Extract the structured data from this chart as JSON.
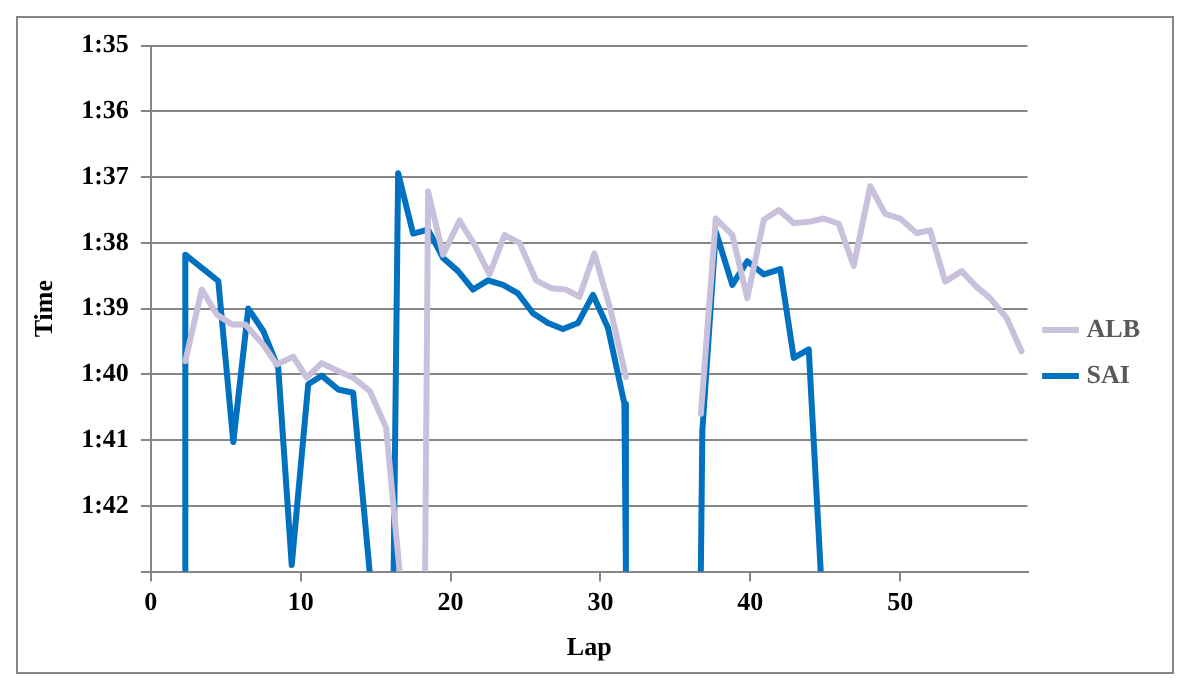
{
  "chart_data": {
    "type": "line",
    "xlabel": "Lap",
    "ylabel": "Time",
    "xlim": [
      0,
      58.5
    ],
    "xticks": [
      0,
      10,
      20,
      30,
      40,
      50
    ],
    "ylim": [
      103,
      95
    ],
    "yticks": [
      {
        "value": 95,
        "label": "1:35"
      },
      {
        "value": 96,
        "label": "1:36"
      },
      {
        "value": 97,
        "label": "1:37"
      },
      {
        "value": 98,
        "label": "1:38"
      },
      {
        "value": 99,
        "label": "1:39"
      },
      {
        "value": 100,
        "label": "1:40"
      },
      {
        "value": 101,
        "label": "1:41"
      },
      {
        "value": 102,
        "label": "1:42"
      },
      {
        "value": 103,
        "label": null
      }
    ],
    "grid": "y",
    "legend": "right",
    "marker": "none",
    "line_style": "solid",
    "series": [
      {
        "name": "ALB",
        "color": "#c9c0dc",
        "x": [
          2.3,
          3.4,
          4.4,
          5.4,
          6.3,
          7.5,
          8.4,
          9.5,
          10.4,
          11.4,
          12.5,
          13.5,
          14.6,
          15.7,
          16.6,
          17.5,
          18.3,
          18.5,
          19.5,
          20.6,
          21.6,
          22.6,
          23.6,
          24.6,
          25.7,
          26.7,
          27.7,
          28.6,
          29.6,
          30.7,
          31.7,
          34,
          36.7,
          37.7,
          38.8,
          39.8,
          40.9,
          41.9,
          42.9,
          43.9,
          44.9,
          45.9,
          46.9,
          48.0,
          49.0,
          50.0,
          51.1,
          52.0,
          53.0,
          54.1,
          55.1,
          56.0,
          57.1,
          58.1
        ],
        "values": [
          99.8,
          98.71,
          99.09,
          99.24,
          99.24,
          99.55,
          99.85,
          99.73,
          100.05,
          99.83,
          99.95,
          100.05,
          100.25,
          100.81,
          103,
          null,
          103,
          97.22,
          98.18,
          97.66,
          98.03,
          98.48,
          97.88,
          98.0,
          98.57,
          98.69,
          98.71,
          98.82,
          98.16,
          99.04,
          100.04,
          null,
          100.6,
          97.63,
          97.88,
          98.84,
          97.65,
          97.5,
          97.7,
          97.68,
          97.63,
          97.71,
          98.35,
          97.14,
          97.56,
          97.63,
          97.85,
          97.81,
          98.59,
          98.43,
          98.67,
          98.84,
          99.14,
          99.65
        ]
      },
      {
        "name": "SAI",
        "color": "#0070c0",
        "x": [
          2.3,
          2.3,
          3.4,
          4.5,
          5.5,
          6.5,
          7.5,
          8.5,
          9.4,
          10.5,
          11.4,
          12.5,
          13.5,
          14.6,
          15.5,
          16.2,
          16.5,
          17.5,
          18.5,
          19.5,
          20.5,
          21.5,
          22.5,
          23.5,
          24.5,
          25.5,
          26.5,
          27.5,
          28.5,
          29.5,
          30.5,
          31.6,
          31.7,
          34,
          36.7,
          36.8,
          37.7,
          38.8,
          39.8,
          40.9,
          42.0,
          42.9,
          43.9,
          44.7
        ],
        "values": [
          103,
          98.18,
          98.38,
          98.58,
          101.03,
          99.0,
          99.34,
          99.9,
          102.9,
          100.15,
          100.02,
          100.23,
          100.28,
          103,
          null,
          103,
          96.94,
          97.86,
          97.8,
          98.23,
          98.43,
          98.71,
          98.57,
          98.64,
          98.77,
          99.07,
          99.22,
          99.31,
          99.22,
          98.79,
          99.29,
          100.45,
          103,
          null,
          103,
          100.86,
          97.83,
          98.64,
          98.28,
          98.48,
          98.4,
          99.75,
          99.62,
          103
        ]
      }
    ]
  }
}
